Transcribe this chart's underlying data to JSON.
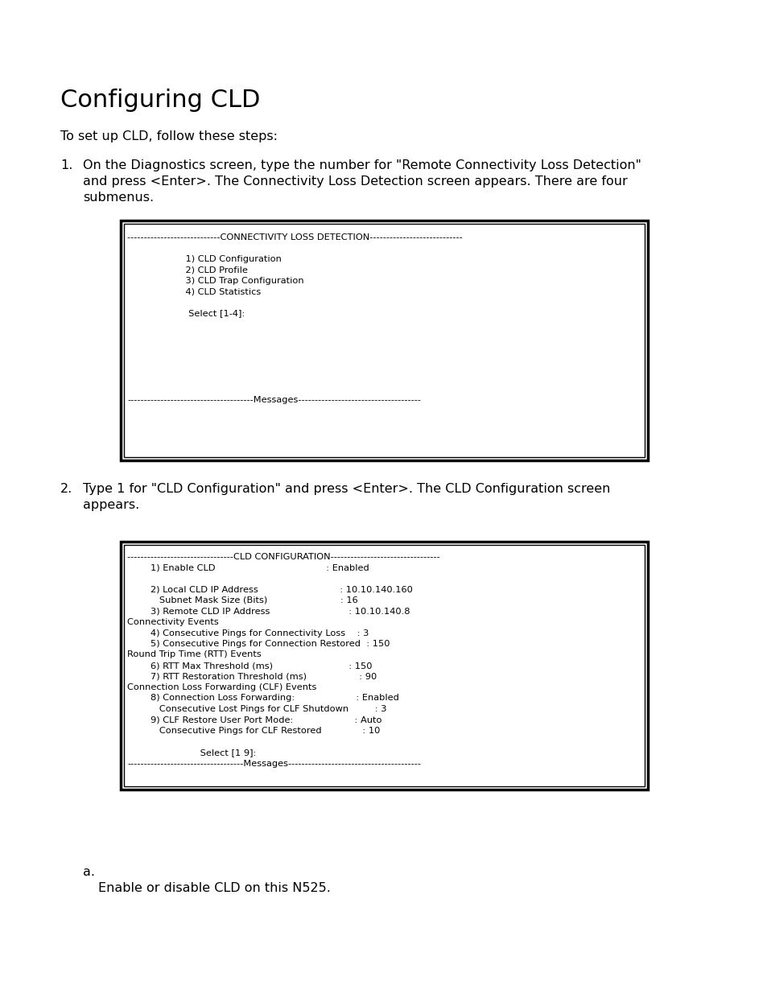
{
  "title": "Configuring CLD",
  "bg_color": "#ffffff",
  "text_color": "#000000",
  "title_fontsize": 22,
  "body_fontsize": 11.5,
  "mono_fontsize": 8.2,
  "intro": "To set up CLD, follow these steps:",
  "step1_label": "1.",
  "step1_text": "On the Diagnostics screen, type the number for \"Remote Connectivity Loss Detection\"\nand press <Enter>. The Connectivity Loss Detection screen appears. There are four\nsubmenus.",
  "step2_label": "2.",
  "step2_text": "Type 1 for \"CLD Configuration\" and press <Enter>. The CLD Configuration screen\nappears.",
  "screen1_lines": [
    "----------------------------CONNECTIVITY LOSS DETECTION----------------------------",
    "",
    "                    1) CLD Configuration",
    "                    2) CLD Profile",
    "                    3) CLD Trap Configuration",
    "                    4) CLD Statistics",
    "",
    "                     Select [1-4]:",
    "",
    "",
    "",
    "",
    "",
    "",
    "",
    "--------------------------------------Messages-------------------------------------"
  ],
  "screen2_lines": [
    "--------------------------------CLD CONFIGURATION---------------------------------",
    "        1) Enable CLD                                      : Enabled",
    "",
    "        2) Local CLD IP Address                            : 10.10.140.160",
    "           Subnet Mask Size (Bits)                         : 16",
    "        3) Remote CLD IP Address                           : 10.10.140.8",
    "Connectivity Events",
    "        4) Consecutive Pings for Connectivity Loss    : 3",
    "        5) Consecutive Pings for Connection Restored  : 150",
    "Round Trip Time (RTT) Events",
    "        6) RTT Max Threshold (ms)                          : 150",
    "        7) RTT Restoration Threshold (ms)                  : 90",
    "Connection Loss Forwarding (CLF) Events",
    "        8) Connection Loss Forwarding:                     : Enabled",
    "           Consecutive Lost Pings for CLF Shutdown         : 3",
    "        9) CLF Restore User Port Mode:                     : Auto",
    "           Consecutive Pings for CLF Restored              : 10",
    "",
    "                         Select [1 9]:",
    "-----------------------------------Messages----------------------------------------"
  ],
  "footer_a": "a.",
  "footer_text": "Enable or disable CLD on this N525."
}
